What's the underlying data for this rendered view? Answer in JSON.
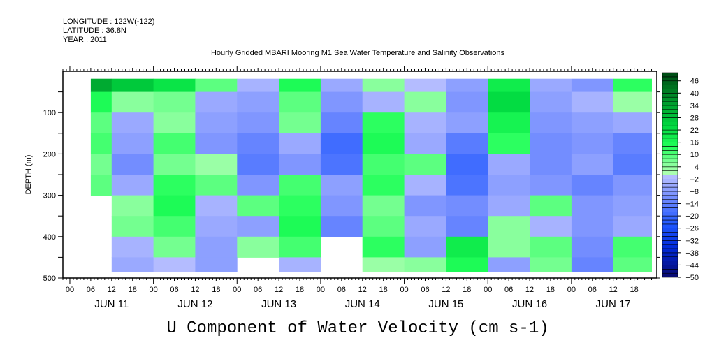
{
  "chart_data": {
    "type": "heatmap",
    "header": {
      "longitude": "LONGITUDE : 122W(-122)",
      "latitude": "LATITUDE : 36.8N",
      "year": "YEAR : 2011"
    },
    "title": "Hourly Gridded MBARI Mooring M1 Sea Water Temperature and Salinity Observations",
    "xlabel": "",
    "ylabel": "DEPTH (m)",
    "variable_label": "U Component of Water Velocity (cm s-1)",
    "x_reference": "2011-06-11T00:00",
    "xlim_hours": [
      -2,
      168.5
    ],
    "ylim": [
      500,
      0
    ],
    "y_ticks": [
      100,
      200,
      300,
      400,
      500
    ],
    "x_hour_ticks": [
      "00",
      "06",
      "12",
      "18"
    ],
    "x_day_labels": [
      "JUN 11",
      "JUN 12",
      "JUN 13",
      "JUN 14",
      "JUN 15",
      "JUN 16",
      "JUN 17"
    ],
    "time_bins_hours": [
      6,
      18,
      30,
      42,
      54,
      66,
      78,
      90,
      102,
      114,
      126,
      138,
      150,
      162
    ],
    "time_bin_width_hours": 12,
    "data_time_end_hours": 167,
    "depth_bins": [
      25,
      75,
      125,
      175,
      225,
      275,
      325,
      375,
      425,
      475
    ],
    "depth_range": [
      18,
      484
    ],
    "values": [
      [
        32,
        26,
        20,
        8,
        -4,
        14,
        -6,
        4,
        -2,
        -8,
        18,
        -6,
        -10,
        12
      ],
      [
        14,
        4,
        6,
        -6,
        -8,
        8,
        -10,
        -4,
        4,
        -10,
        22,
        -8,
        -4,
        2
      ],
      [
        8,
        -6,
        4,
        -8,
        -10,
        6,
        -14,
        12,
        -4,
        -8,
        16,
        -10,
        -8,
        -6
      ],
      [
        10,
        -8,
        10,
        -10,
        -14,
        -6,
        -20,
        14,
        -6,
        -16,
        12,
        -12,
        -10,
        -14
      ],
      [
        6,
        -12,
        6,
        2,
        -16,
        -10,
        -18,
        10,
        8,
        -20,
        -6,
        -12,
        -8,
        -16
      ],
      [
        8,
        -6,
        12,
        8,
        -10,
        10,
        -8,
        12,
        -4,
        -18,
        -8,
        -10,
        -14,
        -10
      ],
      [
        null,
        4,
        14,
        -4,
        8,
        12,
        -10,
        6,
        -10,
        -12,
        -6,
        8,
        -10,
        -8
      ],
      [
        null,
        6,
        10,
        -6,
        -8,
        14,
        -14,
        8,
        -6,
        -14,
        4,
        -4,
        -10,
        -6
      ],
      [
        null,
        -4,
        6,
        -8,
        4,
        10,
        null,
        12,
        -8,
        18,
        4,
        8,
        -12,
        10
      ],
      [
        null,
        -6,
        -2,
        -8,
        null,
        -4,
        null,
        2,
        4,
        14,
        -8,
        6,
        -14,
        8
      ]
    ],
    "colorbar": {
      "range": [
        -50,
        50
      ],
      "band_step": 2,
      "labels": [
        "46",
        "40",
        "34",
        "28",
        "22",
        "16",
        "10",
        "4",
        "-2",
        "-8",
        "-14",
        "-20",
        "-26",
        "-32",
        "-38",
        "-44",
        "-50"
      ],
      "color_stops": [
        {
          "v": -50,
          "c": "#0a0a6e"
        },
        {
          "v": -36,
          "c": "#0028d8"
        },
        {
          "v": -24,
          "c": "#2058ff"
        },
        {
          "v": -12,
          "c": "#6c88ff"
        },
        {
          "v": -1,
          "c": "#b4bcff"
        },
        {
          "v": 0,
          "c": "#b4ffb4"
        },
        {
          "v": 6,
          "c": "#80ff98"
        },
        {
          "v": 14,
          "c": "#20ff58"
        },
        {
          "v": 24,
          "c": "#00d840"
        },
        {
          "v": 36,
          "c": "#009a2c"
        },
        {
          "v": 50,
          "c": "#004a14"
        }
      ]
    }
  }
}
